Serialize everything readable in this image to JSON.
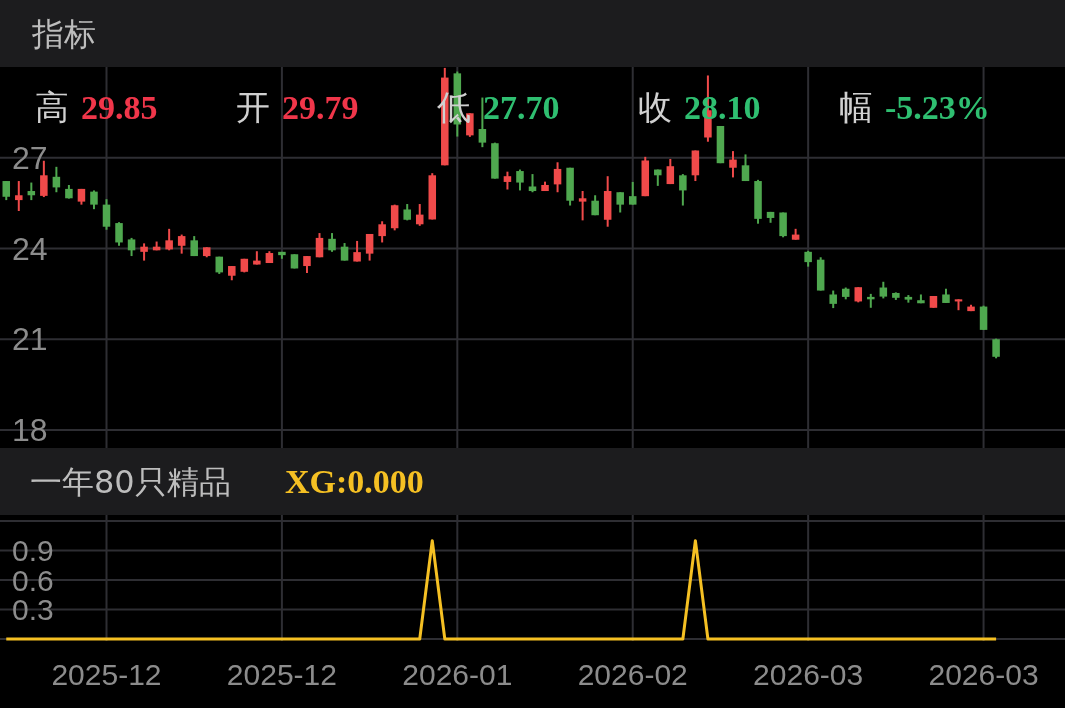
{
  "chart_data": [
    {
      "type": "candlestick",
      "title": "指标",
      "annotations": [
        "高 29.85",
        "开 29.79",
        "低 27.70",
        "收 28.10",
        "幅 -5.23%"
      ],
      "categories": [
        null,
        null,
        null,
        null,
        null,
        null,
        null,
        null,
        "2025-12",
        null,
        null,
        null,
        null,
        null,
        null,
        null,
        null,
        null,
        null,
        null,
        null,
        null,
        "2025-12",
        null,
        null,
        null,
        null,
        null,
        null,
        null,
        null,
        null,
        null,
        null,
        null,
        null,
        "2026-01",
        null,
        null,
        null,
        null,
        null,
        null,
        null,
        null,
        null,
        null,
        null,
        null,
        null,
        "2026-02",
        null,
        null,
        null,
        null,
        null,
        null,
        null,
        null,
        null,
        null,
        null,
        null,
        null,
        "2026-03",
        null,
        null,
        null,
        null,
        null,
        null,
        null,
        null,
        null,
        null,
        null,
        null,
        null,
        "2026-03",
        null
      ],
      "ohlc": [
        [
          26.23,
          26.23,
          25.6,
          25.71
        ],
        [
          25.6,
          26.23,
          25.24,
          25.76
        ],
        [
          25.9,
          26.18,
          25.6,
          25.76
        ],
        [
          25.74,
          26.9,
          25.7,
          26.42
        ],
        [
          26.37,
          26.7,
          25.86,
          26.02
        ],
        [
          25.97,
          26.1,
          25.65,
          25.66
        ],
        [
          25.55,
          25.97,
          25.45,
          25.97
        ],
        [
          25.88,
          25.92,
          25.3,
          25.45
        ],
        [
          25.45,
          25.63,
          24.62,
          24.72
        ],
        [
          24.84,
          24.87,
          24.09,
          24.2
        ],
        [
          24.3,
          24.35,
          23.75,
          23.94
        ],
        [
          23.89,
          24.17,
          23.6,
          24.06
        ],
        [
          23.94,
          24.23,
          23.94,
          24.06
        ],
        [
          23.97,
          24.65,
          23.94,
          24.27
        ],
        [
          24.09,
          24.46,
          23.83,
          24.41
        ],
        [
          24.27,
          24.41,
          23.75,
          23.75
        ],
        [
          23.75,
          24.04,
          23.71,
          24.04
        ],
        [
          23.73,
          23.73,
          23.16,
          23.21
        ],
        [
          23.1,
          23.42,
          22.95,
          23.42
        ],
        [
          23.23,
          23.66,
          23.21,
          23.66
        ],
        [
          23.47,
          23.91,
          23.47,
          23.6
        ],
        [
          23.52,
          23.91,
          23.52,
          23.85
        ],
        [
          23.89,
          23.89,
          23.66,
          23.78
        ],
        [
          23.81,
          23.81,
          23.34,
          23.34
        ],
        [
          23.42,
          23.75,
          23.19,
          23.75
        ],
        [
          23.71,
          24.51,
          23.71,
          24.35
        ],
        [
          24.32,
          24.51,
          23.89,
          23.94
        ],
        [
          24.06,
          24.18,
          23.6,
          23.6
        ],
        [
          23.57,
          24.25,
          23.57,
          23.88
        ],
        [
          23.83,
          24.48,
          23.6,
          24.48
        ],
        [
          24.41,
          24.9,
          24.2,
          24.8
        ],
        [
          24.67,
          25.45,
          24.6,
          25.43
        ],
        [
          25.29,
          25.47,
          24.93,
          24.95
        ],
        [
          24.8,
          25.47,
          24.75,
          25.12
        ],
        [
          24.96,
          26.49,
          24.96,
          26.42
        ],
        [
          26.75,
          29.97,
          26.75,
          29.65
        ],
        [
          29.79,
          29.85,
          27.7,
          28.1
        ],
        [
          27.74,
          28.47,
          27.69,
          28.47
        ],
        [
          27.95,
          28.99,
          27.35,
          27.5
        ],
        [
          27.48,
          27.5,
          26.31,
          26.31
        ],
        [
          26.2,
          26.54,
          25.95,
          26.39
        ],
        [
          26.56,
          26.61,
          25.92,
          26.18
        ],
        [
          26.05,
          26.46,
          25.86,
          25.9
        ],
        [
          25.9,
          26.21,
          25.9,
          26.1
        ],
        [
          26.12,
          26.85,
          25.86,
          26.63
        ],
        [
          26.67,
          26.67,
          25.42,
          25.58
        ],
        [
          25.55,
          25.9,
          24.93,
          25.66
        ],
        [
          25.58,
          25.76,
          25.1,
          25.1
        ],
        [
          24.95,
          26.39,
          24.72,
          25.9
        ],
        [
          25.86,
          25.86,
          25.19,
          25.45
        ],
        [
          25.73,
          26.2,
          25.45,
          25.45
        ],
        [
          25.73,
          27.03,
          25.73,
          26.91
        ],
        [
          26.61,
          26.61,
          26.07,
          26.42
        ],
        [
          26.13,
          26.96,
          26.13,
          26.72
        ],
        [
          26.42,
          26.46,
          25.42,
          25.92
        ],
        [
          26.42,
          27.24,
          26.23,
          27.24
        ],
        [
          27.67,
          29.72,
          27.53,
          28.57
        ],
        [
          28.05,
          28.05,
          26.82,
          26.82
        ],
        [
          26.67,
          27.22,
          26.35,
          26.94
        ],
        [
          26.75,
          27.11,
          26.23,
          26.23
        ],
        [
          26.23,
          26.27,
          24.82,
          24.98
        ],
        [
          25.21,
          25.21,
          24.85,
          25.01
        ],
        [
          25.19,
          25.19,
          24.37,
          24.41
        ],
        [
          24.29,
          24.65,
          24.29,
          24.46
        ],
        [
          23.89,
          23.92,
          23.4,
          23.55
        ],
        [
          23.63,
          23.71,
          22.61,
          22.61
        ],
        [
          22.48,
          22.61,
          22.03,
          22.17
        ],
        [
          22.67,
          22.71,
          22.32,
          22.4
        ],
        [
          22.25,
          22.72,
          22.22,
          22.72
        ],
        [
          22.4,
          22.5,
          22.04,
          22.32
        ],
        [
          22.71,
          22.9,
          22.35,
          22.41
        ],
        [
          22.53,
          22.55,
          22.3,
          22.37
        ],
        [
          22.4,
          22.46,
          22.21,
          22.31
        ],
        [
          22.29,
          22.48,
          22.19,
          22.19
        ],
        [
          22.04,
          22.43,
          22.04,
          22.43
        ],
        [
          22.48,
          22.67,
          22.2,
          22.2
        ],
        [
          22.25,
          22.32,
          21.96,
          22.32
        ],
        [
          21.93,
          22.14,
          21.93,
          22.08
        ],
        [
          22.08,
          22.11,
          21.31,
          21.31
        ],
        [
          21.0,
          21.02,
          20.37,
          20.42
        ]
      ],
      "colors": [
        "#4fa84f",
        "#f04a4a",
        "#4fa84f",
        "#f04a4a",
        "#4fa84f",
        "#4fa84f",
        "#f04a4a",
        "#4fa84f",
        "#4fa84f",
        "#4fa84f",
        "#4fa84f",
        "#f04a4a",
        "#f04a4a",
        "#f04a4a",
        "#f04a4a",
        "#4fa84f",
        "#f04a4a",
        "#4fa84f",
        "#f04a4a",
        "#f04a4a",
        "#f04a4a",
        "#f04a4a",
        "#4fa84f",
        "#4fa84f",
        "#f04a4a",
        "#f04a4a",
        "#4fa84f",
        "#4fa84f",
        "#f04a4a",
        "#f04a4a",
        "#f04a4a",
        "#f04a4a",
        "#4fa84f",
        "#f04a4a",
        "#f04a4a",
        "#f04a4a",
        "#4fa84f",
        "#f04a4a",
        "#4fa84f",
        "#4fa84f",
        "#f04a4a",
        "#4fa84f",
        "#4fa84f",
        "#f04a4a",
        "#f04a4a",
        "#4fa84f",
        "#f04a4a",
        "#4fa84f",
        "#f04a4a",
        "#4fa84f",
        "#4fa84f",
        "#f04a4a",
        "#4fa84f",
        "#f04a4a",
        "#4fa84f",
        "#f04a4a",
        "#f04a4a",
        "#4fa84f",
        "#f04a4a",
        "#4fa84f",
        "#4fa84f",
        "#4fa84f",
        "#4fa84f",
        "#f04a4a",
        "#4fa84f",
        "#4fa84f",
        "#4fa84f",
        "#4fa84f",
        "#f04a4a",
        "#4fa84f",
        "#4fa84f",
        "#4fa84f",
        "#4fa84f",
        "#4fa84f",
        "#f04a4a",
        "#4fa84f",
        "#f04a4a",
        "#f04a4a",
        "#4fa84f",
        "#4fa84f"
      ],
      "ylim": [
        18,
        30
      ],
      "yticks": [
        18,
        21,
        24,
        27
      ],
      "grid": true,
      "tick_labels": "y"
    },
    {
      "type": "line",
      "title": "一年80只精品",
      "annotations": [
        "XG:0.000"
      ],
      "categories": [
        null,
        null,
        null,
        null,
        null,
        null,
        null,
        null,
        "2025-12",
        null,
        null,
        null,
        null,
        null,
        null,
        null,
        null,
        null,
        null,
        null,
        null,
        null,
        "2025-12",
        null,
        null,
        null,
        null,
        null,
        null,
        null,
        null,
        null,
        null,
        null,
        null,
        null,
        "2026-01",
        null,
        null,
        null,
        null,
        null,
        null,
        null,
        null,
        null,
        null,
        null,
        null,
        null,
        "2026-02",
        null,
        null,
        null,
        null,
        null,
        null,
        null,
        null,
        null,
        null,
        null,
        null,
        null,
        "2026-03",
        null,
        null,
        null,
        null,
        null,
        null,
        null,
        null,
        null,
        null,
        null,
        null,
        null,
        "2026-03",
        null
      ],
      "series": [
        {
          "color": "#f5c023",
          "values": [
            0,
            0,
            0,
            0,
            0,
            0,
            0,
            0,
            0,
            0,
            0,
            0,
            0,
            0,
            0,
            0,
            0,
            0,
            0,
            0,
            0,
            0,
            0,
            0,
            0,
            0,
            0,
            0,
            0,
            0,
            0,
            0,
            0,
            0,
            1,
            0,
            0,
            0,
            0,
            0,
            0,
            0,
            0,
            0,
            0,
            0,
            0,
            0,
            0,
            0,
            0,
            0,
            0,
            0,
            0,
            1,
            0,
            0,
            0,
            0,
            0,
            0,
            0,
            0,
            0,
            0,
            0,
            0,
            0,
            0,
            0,
            0,
            0,
            0,
            0,
            0,
            0,
            0,
            0,
            0
          ]
        }
      ],
      "ylim": [
        0,
        1.2
      ],
      "yticks": [
        0.3,
        0.6,
        0.9
      ],
      "grid": true
    }
  ]
}
